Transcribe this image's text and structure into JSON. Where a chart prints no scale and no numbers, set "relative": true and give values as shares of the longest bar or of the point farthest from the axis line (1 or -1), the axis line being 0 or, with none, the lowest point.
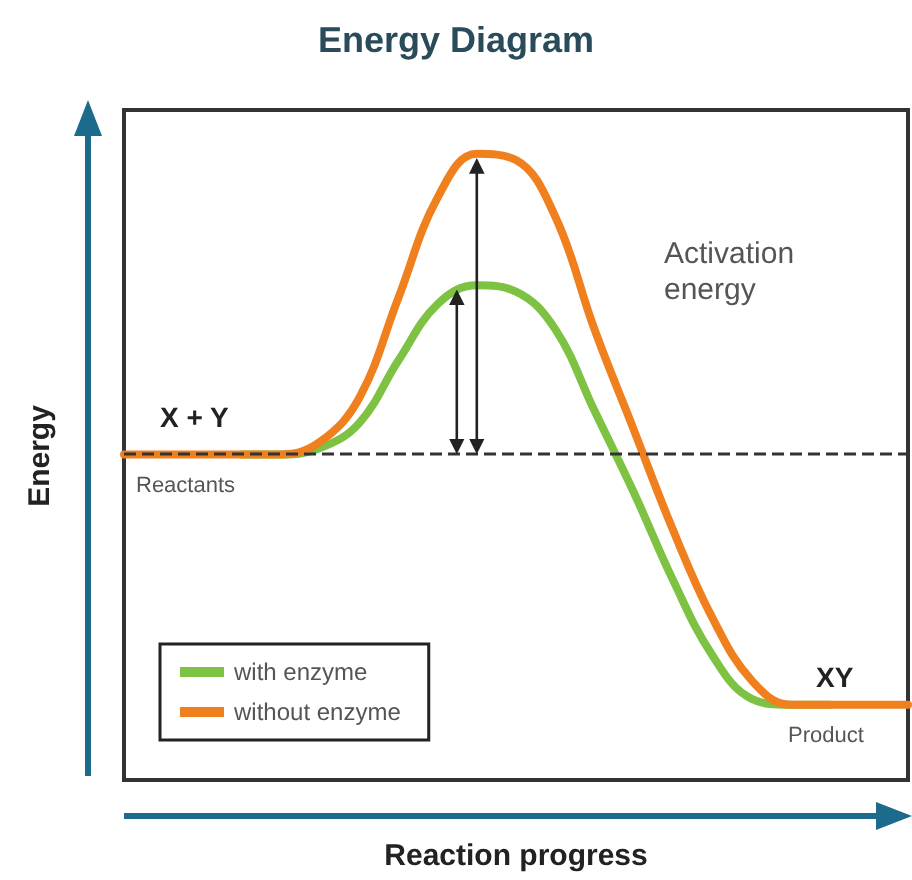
{
  "chart_data": {
    "type": "line",
    "title": "Energy Diagram",
    "xlabel": "Reaction progress",
    "ylabel": "Energy",
    "relative": true,
    "tick_labels": false,
    "legend": "bottom left",
    "grid": false,
    "marker": "none",
    "line_style": "solid",
    "categories": [
      null,
      null,
      null,
      null,
      null,
      null,
      null,
      null,
      null,
      null,
      null,
      null,
      null,
      null,
      null,
      null,
      null,
      null,
      null,
      null,
      null
    ],
    "series": [
      {
        "name": "with enzyme",
        "color": "#7dc242",
        "values": [
          null,
          null,
          null,
          0.52,
          0.52,
          0.53,
          0.57,
          0.67,
          0.76,
          0.79,
          0.78,
          0.72,
          0.59,
          0.46,
          0.32,
          0.2,
          0.13,
          0.12,
          0.12,
          null,
          null
        ]
      },
      {
        "name": "without enzyme",
        "color": "#f07f1e",
        "values": [
          0.52,
          0.52,
          0.52,
          0.52,
          0.52,
          0.54,
          0.61,
          0.77,
          0.93,
          1,
          0.99,
          0.9,
          0.72,
          0.56,
          0.4,
          0.26,
          0.16,
          0.12,
          0.12,
          0.12,
          0.12
        ]
      }
    ],
    "ref_lines": [
      {
        "axis": "y",
        "value": 0.52,
        "color": "#333333",
        "line_style": "dashed"
      }
    ],
    "annotations": [
      "X + Y",
      "Reactants",
      "Activation energy",
      "XY",
      "Product"
    ]
  }
}
